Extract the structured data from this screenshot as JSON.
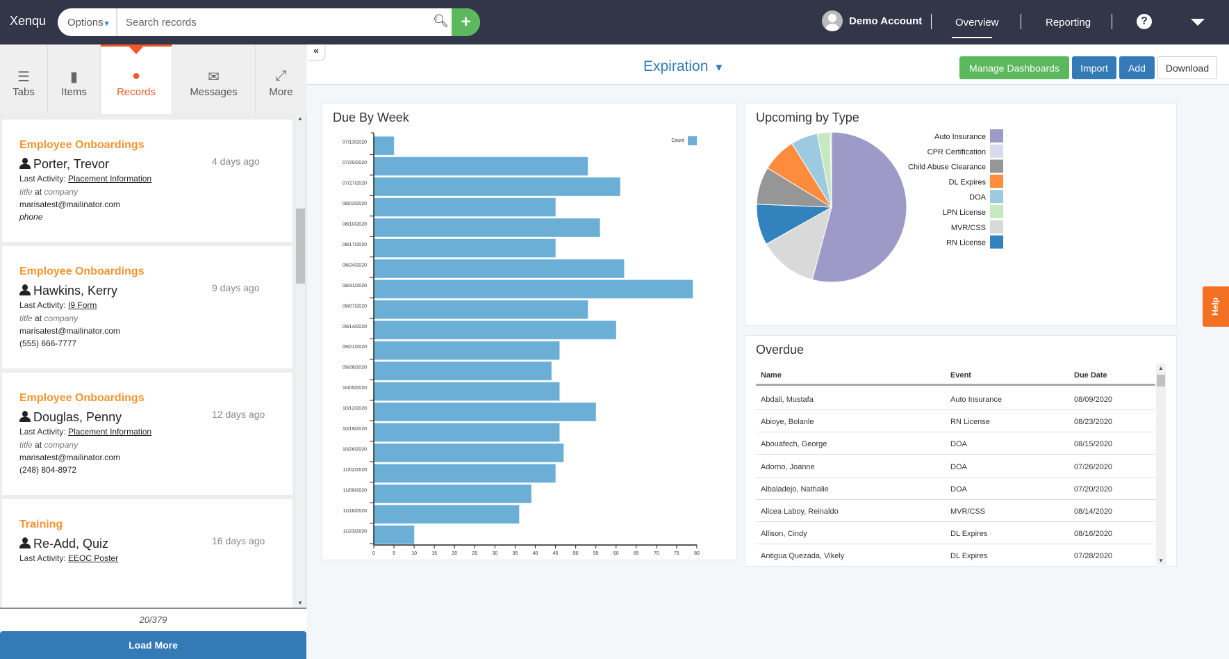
{
  "app": {
    "logo": "Xenqu"
  },
  "search": {
    "options_label": "Options",
    "placeholder": "Search records",
    "add_icon": "plus-icon",
    "search_icon": "magnifier-icon"
  },
  "account": {
    "name": "Demo Account"
  },
  "nav": [
    {
      "label": "Overview",
      "active": true
    },
    {
      "label": "Reporting",
      "active": false
    }
  ],
  "sidebar": {
    "tabs": [
      {
        "label": "Tabs",
        "icon": "list-icon"
      },
      {
        "label": "Items",
        "icon": "file-icon"
      },
      {
        "label": "Records",
        "icon": "person-icon",
        "active": true
      },
      {
        "label": "Messages",
        "icon": "envelope-icon"
      },
      {
        "label": "More",
        "icon": "expand-icon"
      }
    ],
    "records": [
      {
        "category": "Employee Onboardings",
        "name": "Porter, Trevor",
        "ago": "4 days ago",
        "last_activity_label": "Last Activity:",
        "last_activity": "Placement Information",
        "title": "title",
        "at": "at",
        "company": "company",
        "email": "marisatest@mailinator.com",
        "phone": "phone",
        "phone_placeholder": true
      },
      {
        "category": "Employee Onboardings",
        "name": "Hawkins, Kerry",
        "ago": "9 days ago",
        "last_activity_label": "Last Activity:",
        "last_activity": "I9 Form",
        "title": "title",
        "at": "at",
        "company": "company",
        "email": "marisatest@mailinator.com",
        "phone": "(555) 666-7777"
      },
      {
        "category": "Employee Onboardings",
        "name": "Douglas, Penny",
        "ago": "12 days ago",
        "last_activity_label": "Last Activity:",
        "last_activity": "Placement Information",
        "title": "title",
        "at": "at",
        "company": "company",
        "email": "marisatest@mailinator.com",
        "phone": "(248) 804-8972"
      },
      {
        "category": "Training",
        "name": "Re-Add, Quiz",
        "ago": "16 days ago",
        "last_activity_label": "Last Activity:",
        "last_activity": "EEOC Poster"
      }
    ],
    "count": "20/379",
    "load_more": "Load More"
  },
  "dashboard": {
    "title": "Expiration",
    "buttons": {
      "manage": "Manage Dashboards",
      "import": "Import",
      "add": "Add",
      "download": "Download"
    },
    "colors": {
      "manage": "#5cb85c",
      "primary": "#337ab7"
    }
  },
  "help_tab": "Help",
  "chart_data": [
    {
      "type": "bar",
      "orientation": "horizontal",
      "title": "Due By Week",
      "legend": "Count",
      "legend_position": "top-right",
      "color": "#6baed6",
      "categories": [
        "07/13/2020",
        "07/20/2020",
        "07/27/2020",
        "08/03/2020",
        "08/10/2020",
        "08/17/2020",
        "08/24/2020",
        "08/31/2020",
        "09/07/2020",
        "09/14/2020",
        "09/21/2020",
        "09/28/2020",
        "10/05/2020",
        "10/12/2020",
        "10/19/2020",
        "10/26/2020",
        "11/02/2020",
        "11/09/2020",
        "11/16/2020",
        "11/23/2020"
      ],
      "values": [
        5,
        53,
        61,
        45,
        56,
        45,
        62,
        79,
        53,
        60,
        46,
        44,
        46,
        55,
        46,
        47,
        45,
        39,
        36,
        10
      ],
      "xlim": [
        0,
        80
      ],
      "xticks": [
        0,
        5,
        10,
        15,
        20,
        25,
        30,
        35,
        40,
        45,
        50,
        55,
        60,
        65,
        70,
        75,
        80
      ]
    },
    {
      "type": "pie",
      "title": "Upcoming by Type",
      "legend_position": "right",
      "legend": [
        {
          "label": "Auto Insurance",
          "color": "#9e9ac8"
        },
        {
          "label": "CPR Certification",
          "color": "#dadaeb"
        },
        {
          "label": "Child Abuse Clearance",
          "color": "#969696"
        },
        {
          "label": "DL Expires",
          "color": "#fd8d3c"
        },
        {
          "label": "DOA",
          "color": "#9ecae1"
        },
        {
          "label": "LPN License",
          "color": "#c7e9c0"
        },
        {
          "label": "MVR/CSS",
          "color": "#d9d9d9"
        },
        {
          "label": "RN License",
          "color": "#3182bd"
        }
      ],
      "slices": [
        {
          "label": "Auto Insurance",
          "value": 54.2
        },
        {
          "label": "MVR/CSS",
          "value": 12.7
        },
        {
          "label": "RN License",
          "value": 8.8
        },
        {
          "label": "Child Abuse Clearance",
          "value": 8.1
        },
        {
          "label": "DL Expires",
          "value": 7.4
        },
        {
          "label": "DOA",
          "value": 5.8
        },
        {
          "label": "LPN License",
          "value": 2.8
        },
        {
          "label": "CPR Certification",
          "value": 0.3
        }
      ]
    }
  ],
  "overdue": {
    "title": "Overdue",
    "columns": [
      "Name",
      "Event",
      "Due Date"
    ],
    "rows": [
      [
        "Abdali, Mustafa",
        "Auto Insurance",
        "08/09/2020"
      ],
      [
        "Abioye, Bolanle",
        "RN License",
        "08/23/2020"
      ],
      [
        "Abouafech, George",
        "DOA",
        "08/15/2020"
      ],
      [
        "Adorno, Joanne",
        "DOA",
        "07/26/2020"
      ],
      [
        "Albaladejo, Nathalie",
        "DOA",
        "07/20/2020"
      ],
      [
        "Alicea Laboy, Reinaldo",
        "MVR/CSS",
        "08/14/2020"
      ],
      [
        "Allison, Cindy",
        "DL Expires",
        "08/16/2020"
      ],
      [
        "Antigua Quezada, Vikely",
        "DL Expires",
        "07/28/2020"
      ]
    ]
  }
}
